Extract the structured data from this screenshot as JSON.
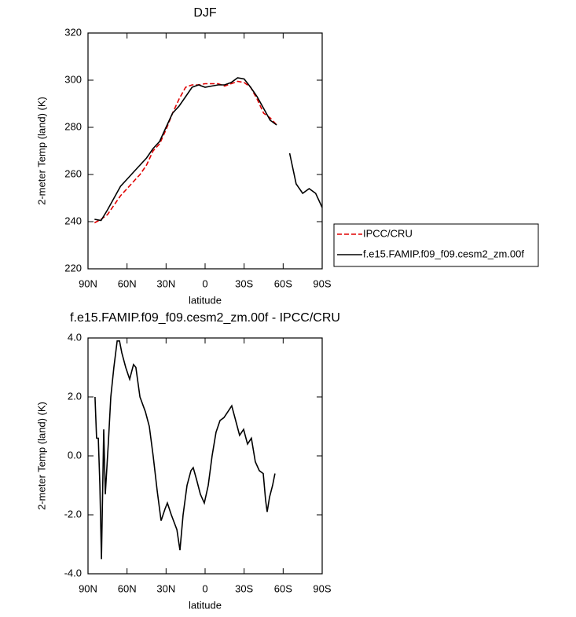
{
  "chart_data": [
    {
      "type": "line",
      "title": "DJF",
      "xlabel": "latitude",
      "ylabel": "2-meter Temp (land) (K)",
      "x": [
        85,
        80,
        75,
        70,
        65,
        60,
        55,
        50,
        45,
        40,
        35,
        30,
        25,
        20,
        15,
        10,
        5,
        0,
        -5,
        -10,
        -15,
        -20,
        -25,
        -30,
        -35,
        -40,
        -45,
        -50,
        -55,
        -60,
        -65,
        -70,
        -75,
        -80,
        -85,
        -90
      ],
      "series": [
        {
          "name": "IPCC/CRU",
          "color": "#e00000",
          "style": "dashed",
          "values": [
            239.5,
            241,
            243,
            247,
            251,
            254,
            257,
            260,
            264,
            270,
            273,
            279,
            286,
            292,
            297,
            298,
            298,
            298.5,
            298.5,
            298.5,
            297.5,
            298.5,
            299.5,
            299,
            297,
            292,
            286,
            284,
            281,
            null,
            null,
            null,
            null,
            null,
            null,
            null
          ]
        },
        {
          "name": "f.e15.FAMIP.f09_f09.cesm2_zm.00f",
          "color": "#000000",
          "style": "solid",
          "values": [
            241,
            240.5,
            245,
            250,
            255,
            258,
            261,
            264,
            267,
            271,
            274,
            280,
            286,
            289,
            293,
            297,
            298,
            297,
            297.5,
            298,
            298,
            299,
            301,
            300.5,
            297,
            293,
            288,
            283,
            281,
            null,
            269,
            256,
            252,
            254,
            252,
            246
          ]
        }
      ],
      "xlim": [
        90,
        -90
      ],
      "xticks": [
        {
          "value": 90,
          "label": "90N"
        },
        {
          "value": 60,
          "label": "60N"
        },
        {
          "value": 30,
          "label": "30N"
        },
        0,
        {
          "value": -30,
          "label": "30S"
        },
        {
          "value": -60,
          "label": "60S"
        },
        {
          "value": -90,
          "label": "90S"
        }
      ],
      "ylim": [
        220,
        320
      ],
      "yticks": [
        220,
        240,
        260,
        280,
        300,
        320
      ],
      "legend": "outside-right"
    },
    {
      "type": "line",
      "title": "f.e15.FAMIP.f09_f09.cesm2_zm.00f - IPCC/CRU",
      "xlabel": "latitude",
      "ylabel": "2-meter Temp (land) (K)",
      "x": [
        84.6,
        83.4,
        82.1,
        80.9,
        79.7,
        77.9,
        76.7,
        74.3,
        72.5,
        70.1,
        67.6,
        65.8,
        64,
        61,
        58,
        55,
        53.2,
        50.1,
        45.9,
        42.9,
        39.9,
        36.8,
        33.8,
        30.8,
        29,
        26,
        21.7,
        19.3,
        16.9,
        13.9,
        10.9,
        9.1,
        6.6,
        3.6,
        0.6,
        -2.4,
        -5.4,
        -8.4,
        -11.5,
        -14.5,
        -17.5,
        -20.5,
        -23.5,
        -26.5,
        -29.6,
        -32.6,
        -35.6,
        -38.6,
        -41.7,
        -44.7,
        -46.5,
        -47.7,
        -49.5,
        -51.9,
        -53.7
      ],
      "series": [
        {
          "color": "#000000",
          "style": "solid",
          "values": [
            2.0,
            0.6,
            0.6,
            -1.0,
            -3.5,
            0.9,
            -1.3,
            0.5,
            2.0,
            3.0,
            3.9,
            3.9,
            3.5,
            3.0,
            2.6,
            3.1,
            3.0,
            2.0,
            1.5,
            1.0,
            0.0,
            -1.2,
            -2.2,
            -1.8,
            -1.6,
            -2.0,
            -2.5,
            -3.2,
            -2.0,
            -1.0,
            -0.5,
            -0.4,
            -0.8,
            -1.3,
            -1.6,
            -1.0,
            0.0,
            0.8,
            1.2,
            1.3,
            1.5,
            1.7,
            1.2,
            0.7,
            0.9,
            0.4,
            0.6,
            -0.2,
            -0.5,
            -0.6,
            -1.5,
            -1.9,
            -1.4,
            -1.0,
            -0.6
          ]
        }
      ],
      "xlim": [
        90,
        -90
      ],
      "xticks": [
        {
          "value": 90,
          "label": "90N"
        },
        {
          "value": 60,
          "label": "60N"
        },
        {
          "value": 30,
          "label": "30N"
        },
        0,
        {
          "value": -30,
          "label": "30S"
        },
        {
          "value": -60,
          "label": "60S"
        },
        {
          "value": -90,
          "label": "90S"
        }
      ],
      "ylim": [
        -4,
        4
      ],
      "yticks": [
        {
          "value": -4,
          "label": "-4.0"
        },
        {
          "value": -2,
          "label": "-2.0"
        },
        {
          "value": 0,
          "label": "0.0"
        },
        {
          "value": 2,
          "label": "2.0"
        },
        {
          "value": 4,
          "label": "4.0"
        }
      ]
    }
  ]
}
